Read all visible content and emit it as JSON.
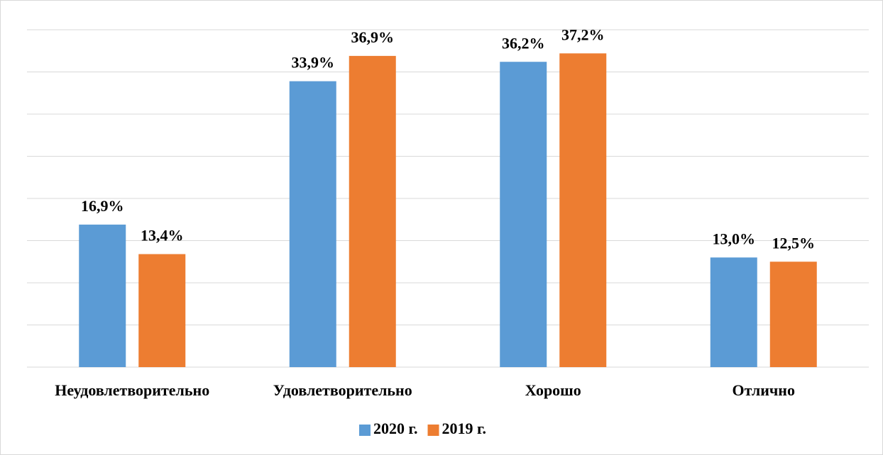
{
  "chart_data": {
    "type": "bar",
    "categories": [
      "Неудовлетворительно",
      "Удовлетворительно",
      "Хорошо",
      "Отлично"
    ],
    "series": [
      {
        "name": "2020 г.",
        "color": "#5b9bd5",
        "values": [
          16.9,
          33.9,
          36.2,
          13.0
        ],
        "value_labels": [
          "16,9%",
          "33,9%",
          "36,2%",
          "13,0%"
        ]
      },
      {
        "name": "2019 г.",
        "color": "#ed7d31",
        "values": [
          13.4,
          36.9,
          37.2,
          12.5
        ],
        "value_labels": [
          "13,4%",
          "36,9%",
          "37,2%",
          "12,5%"
        ]
      }
    ],
    "ylim": [
      0,
      40
    ],
    "yticks": [
      0,
      5,
      10,
      15,
      20,
      25,
      30,
      35,
      40
    ],
    "grid": true,
    "legend": "bottom"
  }
}
